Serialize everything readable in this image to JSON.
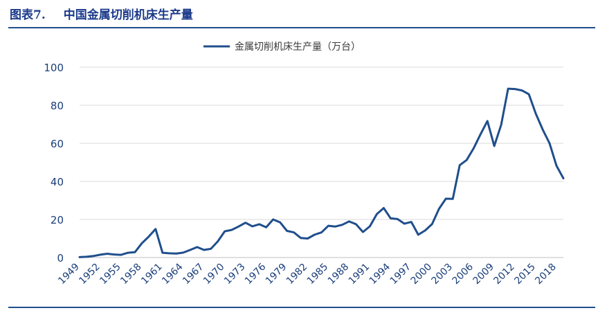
{
  "figure": {
    "label": "图表7.",
    "title": "中国金属切削机床生产量"
  },
  "colors": {
    "title": "#1b3a8a",
    "rule": "#1f4e8c",
    "series": "#1f4e8c",
    "grid": "#d9d9d9",
    "tick_text": "#1a3e7a"
  },
  "chart_data": {
    "type": "line",
    "legend_position": "top-center",
    "grid": true,
    "ylim": [
      0,
      100
    ],
    "yticks": [
      0,
      20,
      40,
      60,
      80,
      100
    ],
    "xticks": [
      "1949",
      "1952",
      "1955",
      "1958",
      "1961",
      "1964",
      "1967",
      "1970",
      "1973",
      "1976",
      "1979",
      "1982",
      "1985",
      "1988",
      "1991",
      "1994",
      "1997",
      "2000",
      "2003",
      "2006",
      "2009",
      "2012",
      "2015",
      "2018"
    ],
    "x": [
      1949,
      1950,
      1951,
      1952,
      1953,
      1954,
      1955,
      1956,
      1957,
      1958,
      1959,
      1960,
      1961,
      1962,
      1963,
      1964,
      1965,
      1966,
      1967,
      1968,
      1969,
      1970,
      1971,
      1972,
      1973,
      1974,
      1975,
      1976,
      1977,
      1978,
      1979,
      1980,
      1981,
      1982,
      1983,
      1984,
      1985,
      1986,
      1987,
      1988,
      1989,
      1990,
      1991,
      1992,
      1993,
      1994,
      1995,
      1996,
      1997,
      1998,
      1999,
      2000,
      2001,
      2002,
      2003,
      2004,
      2005,
      2006,
      2007,
      2008,
      2009,
      2010,
      2011,
      2012,
      2013,
      2014,
      2015,
      2016,
      2017,
      2018,
      2019
    ],
    "series": [
      {
        "name": "金属切削机床生产量（万台）",
        "values": [
          0.2,
          0.4,
          0.8,
          1.5,
          2.0,
          1.6,
          1.4,
          2.5,
          2.8,
          7.5,
          11.0,
          15.0,
          2.5,
          2.2,
          2.1,
          2.6,
          4.0,
          5.5,
          4.0,
          4.6,
          8.5,
          13.8,
          14.5,
          16.3,
          18.3,
          16.4,
          17.5,
          15.9,
          20.0,
          18.5,
          14.0,
          13.2,
          10.3,
          10.0,
          12.0,
          13.2,
          16.7,
          16.3,
          17.2,
          19.0,
          17.5,
          13.4,
          16.4,
          22.8,
          26.0,
          20.6,
          20.2,
          17.8,
          18.7,
          12.0,
          14.2,
          17.6,
          25.6,
          30.9,
          30.8,
          48.5,
          51.2,
          57.3,
          64.7,
          71.7,
          58.6,
          69.7,
          88.7,
          88.5,
          87.8,
          85.8,
          75.6,
          67.3,
          60.0,
          48.2,
          41.6
        ]
      }
    ]
  }
}
